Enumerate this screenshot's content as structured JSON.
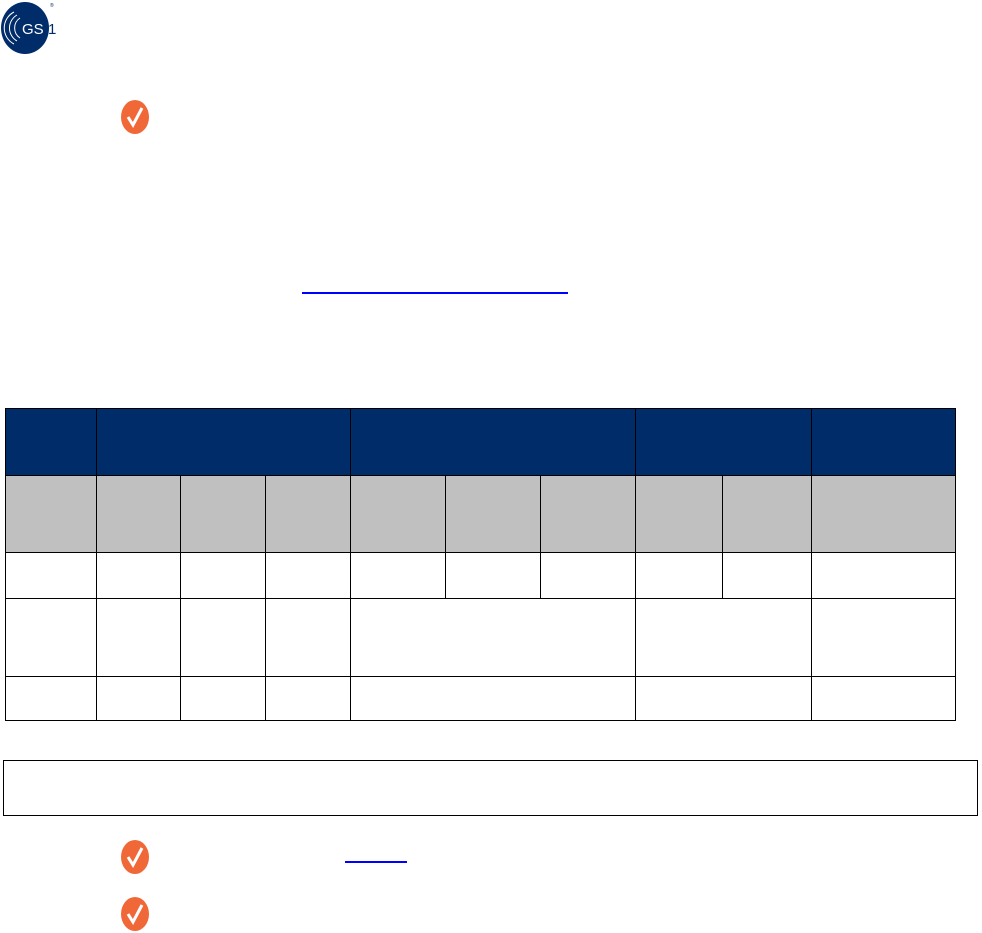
{
  "logo": {
    "text": "GS1",
    "registered_mark": "®",
    "color": "#002c6a"
  },
  "icons": {
    "check": "check-circle-icon",
    "check_color": "#f06838"
  },
  "colors": {
    "header_primary": "#002c6a",
    "header_secondary": "#c0c0c0",
    "link": "#0000ff"
  }
}
